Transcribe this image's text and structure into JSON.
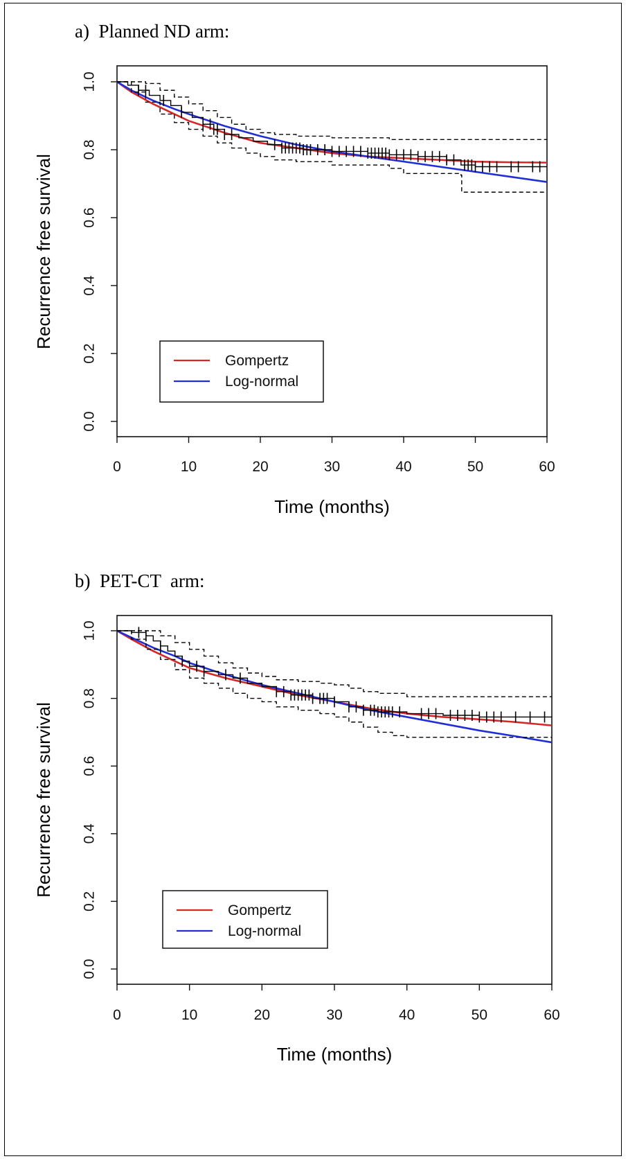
{
  "chart_data": [
    {
      "type": "line",
      "title": "a)  Planned ND arm:",
      "xlabel": "Time (months)",
      "ylabel": "Recurrence free survival",
      "xlim": [
        0,
        60
      ],
      "ylim": [
        0,
        1.0
      ],
      "x_ticks": [
        "0",
        "10",
        "20",
        "30",
        "40",
        "50",
        "60"
      ],
      "y_ticks": [
        "0.0",
        "0.2",
        "0.4",
        "0.6",
        "0.8",
        "1.0"
      ],
      "legend": [
        "Gompertz",
        "Log-normal"
      ],
      "legend_position": "bottom-left",
      "colors": {
        "Gompertz": "#d62728",
        "Log-normal": "#1f2ed6",
        "km": "#000000"
      },
      "series": [
        {
          "name": "Gompertz",
          "style": "solid",
          "color": "#d62728",
          "x": [
            0,
            2,
            5,
            8,
            10,
            15,
            20,
            25,
            30,
            35,
            40,
            45,
            50,
            55,
            60
          ],
          "y": [
            1.0,
            0.97,
            0.935,
            0.905,
            0.885,
            0.85,
            0.82,
            0.805,
            0.79,
            0.78,
            0.775,
            0.77,
            0.765,
            0.763,
            0.762
          ]
        },
        {
          "name": "Log-normal",
          "style": "solid",
          "color": "#1f2ed6",
          "x": [
            0,
            2,
            5,
            8,
            10,
            15,
            20,
            25,
            30,
            35,
            40,
            45,
            50,
            55,
            60
          ],
          "y": [
            1.0,
            0.975,
            0.945,
            0.92,
            0.905,
            0.87,
            0.84,
            0.815,
            0.795,
            0.78,
            0.765,
            0.75,
            0.735,
            0.72,
            0.705
          ]
        },
        {
          "style": "step",
          "color": "#000000",
          "x": [
            0,
            1.5,
            3,
            4.5,
            6,
            7.5,
            9,
            10.5,
            12,
            13.5,
            15,
            17,
            19,
            21,
            23,
            26,
            30,
            35,
            38,
            42,
            46,
            48,
            50,
            60
          ],
          "y": [
            1.0,
            0.99,
            0.975,
            0.96,
            0.945,
            0.93,
            0.91,
            0.895,
            0.875,
            0.86,
            0.845,
            0.835,
            0.825,
            0.815,
            0.805,
            0.8,
            0.795,
            0.79,
            0.785,
            0.78,
            0.77,
            0.755,
            0.75,
            0.75
          ]
        },
        {
          "style": "dashed",
          "color": "#000000",
          "x": [
            0,
            2,
            4,
            6,
            8,
            10,
            12,
            14,
            16,
            18,
            20,
            22,
            25,
            30,
            38,
            40,
            48,
            60
          ],
          "y": [
            1.0,
            1.0,
            0.995,
            0.975,
            0.955,
            0.935,
            0.915,
            0.895,
            0.875,
            0.86,
            0.85,
            0.845,
            0.84,
            0.835,
            0.83,
            0.83,
            0.83,
            0.83
          ]
        },
        {
          "style": "dashed",
          "color": "#000000",
          "x": [
            0,
            2,
            4,
            6,
            8,
            10,
            12,
            14,
            16,
            18,
            20,
            22,
            25,
            30,
            38,
            40,
            48,
            48.1,
            60
          ],
          "y": [
            1.0,
            0.97,
            0.94,
            0.905,
            0.88,
            0.86,
            0.84,
            0.82,
            0.805,
            0.79,
            0.78,
            0.77,
            0.765,
            0.755,
            0.745,
            0.73,
            0.725,
            0.675,
            0.675
          ]
        }
      ],
      "censor_x": [
        3,
        4,
        6.5,
        9,
        12,
        13,
        13.5,
        14,
        15,
        16,
        22,
        23,
        23.5,
        24,
        24.5,
        25,
        25.5,
        26,
        26.5,
        27,
        28,
        29,
        30,
        31,
        32,
        33,
        34,
        35,
        35.5,
        36,
        36.5,
        37,
        37.5,
        38,
        39,
        40,
        41,
        42,
        43,
        44,
        45,
        46,
        47,
        48.5,
        49,
        49.5,
        50,
        51,
        52,
        53,
        55,
        56,
        58,
        59
      ]
    },
    {
      "type": "line",
      "title": "b)  PET-CT  arm:",
      "xlabel": "Time (months)",
      "ylabel": "Recurrence free survival",
      "xlim": [
        0,
        60
      ],
      "ylim": [
        0,
        1.0
      ],
      "x_ticks": [
        "0",
        "10",
        "20",
        "30",
        "40",
        "50",
        "60"
      ],
      "y_ticks": [
        "0.0",
        "0.2",
        "0.4",
        "0.6",
        "0.8",
        "1.0"
      ],
      "legend": [
        "Gompertz",
        "Log-normal"
      ],
      "legend_position": "bottom-left",
      "colors": {
        "Gompertz": "#d62728",
        "Log-normal": "#1f2ed6",
        "km": "#000000"
      },
      "series": [
        {
          "name": "Gompertz",
          "style": "solid",
          "color": "#d62728",
          "x": [
            0,
            2,
            5,
            8,
            10,
            15,
            20,
            25,
            30,
            35,
            40,
            45,
            50,
            55,
            60
          ],
          "y": [
            1.0,
            0.975,
            0.94,
            0.91,
            0.89,
            0.86,
            0.835,
            0.81,
            0.79,
            0.77,
            0.755,
            0.745,
            0.738,
            0.73,
            0.72
          ]
        },
        {
          "name": "Log-normal",
          "style": "solid",
          "color": "#1f2ed6",
          "x": [
            0,
            2,
            5,
            8,
            10,
            15,
            20,
            25,
            30,
            35,
            40,
            45,
            50,
            55,
            60
          ],
          "y": [
            1.0,
            0.98,
            0.95,
            0.925,
            0.905,
            0.87,
            0.84,
            0.815,
            0.79,
            0.765,
            0.745,
            0.725,
            0.705,
            0.688,
            0.67
          ]
        },
        {
          "style": "step",
          "color": "#000000",
          "x": [
            0,
            2,
            4,
            5,
            6,
            7,
            8,
            9,
            10,
            12,
            14,
            16,
            18,
            20,
            22,
            24,
            27,
            30,
            32,
            34,
            36,
            40,
            45,
            50,
            60
          ],
          "y": [
            1.0,
            0.995,
            0.985,
            0.97,
            0.955,
            0.94,
            0.925,
            0.91,
            0.895,
            0.88,
            0.87,
            0.86,
            0.845,
            0.835,
            0.82,
            0.81,
            0.8,
            0.79,
            0.775,
            0.765,
            0.76,
            0.755,
            0.75,
            0.745,
            0.745
          ]
        },
        {
          "style": "dashed",
          "color": "#000000",
          "x": [
            0,
            2,
            4,
            6,
            8,
            10,
            12,
            14,
            16,
            18,
            20,
            22,
            25,
            28,
            30,
            32,
            34,
            36,
            40,
            60
          ],
          "y": [
            1.0,
            1.0,
            1.0,
            0.985,
            0.965,
            0.945,
            0.925,
            0.905,
            0.89,
            0.875,
            0.865,
            0.855,
            0.85,
            0.845,
            0.84,
            0.83,
            0.82,
            0.815,
            0.805,
            0.805
          ]
        },
        {
          "style": "dashed",
          "color": "#000000",
          "x": [
            0,
            2,
            4,
            6,
            8,
            10,
            12,
            14,
            16,
            18,
            20,
            22,
            25,
            28,
            30,
            32,
            34,
            36,
            38,
            40,
            60
          ],
          "y": [
            1.0,
            0.975,
            0.945,
            0.915,
            0.885,
            0.86,
            0.845,
            0.83,
            0.815,
            0.8,
            0.79,
            0.775,
            0.765,
            0.755,
            0.745,
            0.73,
            0.715,
            0.7,
            0.69,
            0.685,
            0.685
          ]
        }
      ],
      "censor_x": [
        3,
        4,
        6,
        9,
        11,
        12,
        15,
        17,
        22,
        23,
        24,
        24.5,
        25,
        25.5,
        26,
        26.5,
        27,
        28,
        28.5,
        29,
        30,
        32,
        33,
        34,
        35,
        35.5,
        36,
        36.5,
        37,
        37.5,
        38,
        39,
        42,
        43,
        44,
        46,
        47,
        48,
        49,
        50,
        51,
        52,
        53,
        55,
        57,
        59
      ]
    }
  ]
}
